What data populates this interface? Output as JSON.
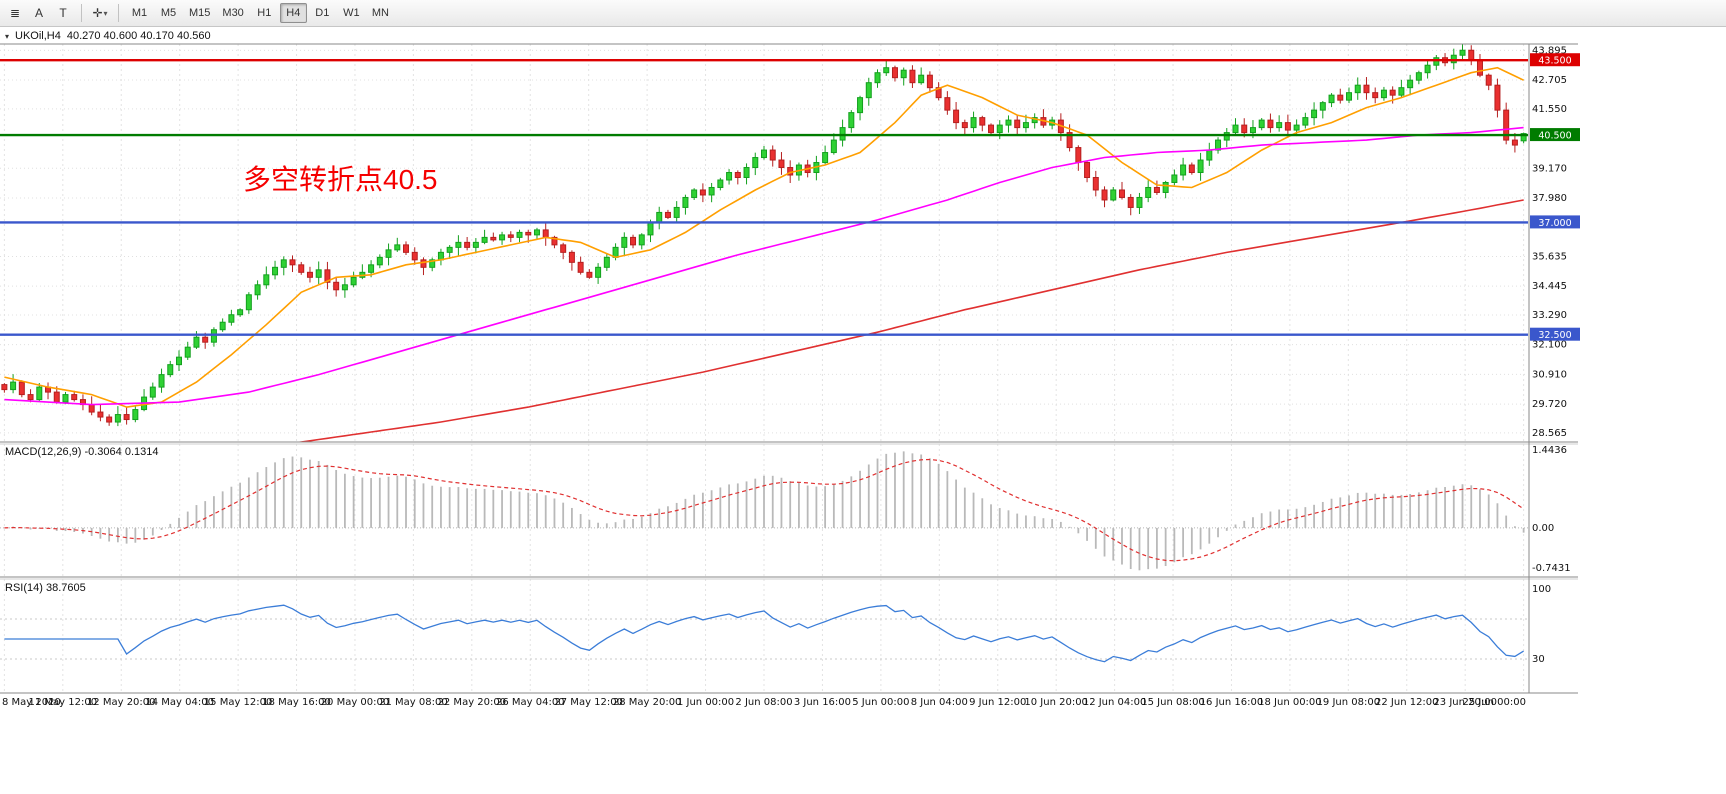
{
  "toolbar": {
    "icons": [
      {
        "name": "chart-window-icon",
        "glyph": "≣"
      },
      {
        "name": "font-tool-icon",
        "glyph": "A"
      },
      {
        "name": "text-tool-icon",
        "glyph": "T"
      },
      {
        "name": "cursor-mode-icon",
        "glyph": "✛",
        "dropdown": "▾"
      }
    ],
    "timeframes": [
      "M1",
      "M5",
      "M15",
      "M30",
      "H1",
      "H4",
      "D1",
      "W1",
      "MN"
    ],
    "active_timeframe": "H4"
  },
  "quote_line": {
    "expand_icon": "▾",
    "symbol_period": "UKOil,H4",
    "ohlc": "40.270 40.600 40.170 40.560"
  },
  "chart_data": {
    "type": "candlestick",
    "symbol": "UKOil",
    "timeframe": "H4",
    "quote": {
      "open": "40.270",
      "high": "40.600",
      "low": "40.170",
      "close": "40.560"
    },
    "y_axis": {
      "min": 28.2,
      "max": 44.15,
      "tick_labels": [
        "43.895",
        "42.705",
        "41.550",
        "39.170",
        "37.980",
        "35.635",
        "34.445",
        "33.290",
        "32.100",
        "30.910",
        "29.720",
        "28.565"
      ]
    },
    "x_axis": {
      "tick_labels": [
        "8 May 2020",
        "11 May 12:00",
        "12 May 20:00",
        "14 May 04:00",
        "15 May 12:00",
        "18 May 16:00",
        "20 May 00:00",
        "21 May 08:00",
        "22 May 20:00",
        "26 May 04:00",
        "27 May 12:00",
        "28 May 20:00",
        "1 Jun 00:00",
        "2 Jun 08:00",
        "3 Jun 16:00",
        "5 Jun 00:00",
        "8 Jun 04:00",
        "9 Jun 12:00",
        "10 Jun 20:00",
        "12 Jun 04:00",
        "15 Jun 08:00",
        "16 Jun 16:00",
        "18 Jun 00:00",
        "19 Jun 08:00",
        "22 Jun 12:00",
        "23 Jun 20:00",
        "25 Jun 00:00"
      ]
    },
    "horizontal_lines": [
      {
        "value": 43.5,
        "label": "43.500",
        "color": "#dd0000"
      },
      {
        "value": 40.5,
        "label": "40.500",
        "color": "#007c00"
      },
      {
        "value": 37.0,
        "label": "37.000",
        "color": "#3a57cc"
      },
      {
        "value": 32.5,
        "label": "32.500",
        "color": "#3a57cc"
      }
    ],
    "annotation": {
      "text": "多空转折点40.5",
      "color": "#f50000"
    },
    "closes": [
      30.3,
      30.6,
      30.1,
      29.9,
      30.4,
      30.2,
      29.8,
      30.1,
      29.9,
      29.7,
      29.4,
      29.2,
      29.0,
      29.3,
      29.1,
      29.5,
      30.0,
      30.4,
      30.9,
      31.3,
      31.6,
      32.0,
      32.4,
      32.2,
      32.7,
      33.0,
      33.3,
      33.5,
      34.1,
      34.5,
      34.9,
      35.2,
      35.5,
      35.3,
      35.0,
      34.8,
      35.1,
      34.6,
      34.3,
      34.5,
      34.8,
      35.0,
      35.3,
      35.6,
      35.9,
      36.1,
      35.8,
      35.5,
      35.2,
      35.5,
      35.8,
      36.0,
      36.2,
      36.0,
      36.2,
      36.4,
      36.3,
      36.5,
      36.4,
      36.6,
      36.5,
      36.7,
      36.4,
      36.1,
      35.8,
      35.4,
      35.0,
      34.8,
      35.2,
      35.6,
      36.0,
      36.4,
      36.1,
      36.5,
      37.0,
      37.4,
      37.2,
      37.6,
      38.0,
      38.3,
      38.1,
      38.4,
      38.7,
      39.0,
      38.8,
      39.2,
      39.6,
      39.9,
      39.5,
      39.2,
      38.9,
      39.3,
      39.0,
      39.4,
      39.8,
      40.3,
      40.8,
      41.4,
      42.0,
      42.6,
      43.0,
      43.2,
      42.8,
      43.1,
      42.6,
      42.9,
      42.4,
      42.0,
      41.5,
      41.0,
      40.8,
      41.2,
      40.9,
      40.6,
      40.9,
      41.1,
      40.8,
      41.0,
      41.2,
      40.9,
      41.1,
      40.6,
      40.0,
      39.4,
      38.8,
      38.3,
      37.9,
      38.3,
      38.0,
      37.6,
      38.0,
      38.4,
      38.2,
      38.6,
      38.9,
      39.3,
      39.0,
      39.5,
      39.9,
      40.3,
      40.6,
      40.9,
      40.6,
      40.8,
      41.1,
      40.8,
      41.0,
      40.7,
      40.9,
      41.2,
      41.5,
      41.8,
      42.1,
      41.9,
      42.2,
      42.5,
      42.2,
      42.0,
      42.3,
      42.1,
      42.4,
      42.7,
      43.0,
      43.3,
      43.6,
      43.4,
      43.7,
      43.9,
      43.5,
      42.9,
      42.5,
      41.5,
      40.3,
      40.1,
      40.56
    ],
    "moving_averages": [
      {
        "name": "ma-fast",
        "color": "#ff9f00",
        "points": [
          [
            0,
            30.8
          ],
          [
            5,
            30.4
          ],
          [
            10,
            30.1
          ],
          [
            14,
            29.6
          ],
          [
            18,
            29.8
          ],
          [
            22,
            30.6
          ],
          [
            26,
            31.7
          ],
          [
            30,
            32.9
          ],
          [
            34,
            34.2
          ],
          [
            38,
            34.8
          ],
          [
            42,
            34.9
          ],
          [
            46,
            35.3
          ],
          [
            50,
            35.5
          ],
          [
            54,
            35.8
          ],
          [
            58,
            36.1
          ],
          [
            62,
            36.4
          ],
          [
            66,
            36.2
          ],
          [
            70,
            35.6
          ],
          [
            74,
            35.9
          ],
          [
            78,
            36.6
          ],
          [
            82,
            37.5
          ],
          [
            86,
            38.3
          ],
          [
            90,
            39.0
          ],
          [
            94,
            39.3
          ],
          [
            98,
            39.8
          ],
          [
            102,
            41.0
          ],
          [
            105,
            42.1
          ],
          [
            108,
            42.5
          ],
          [
            112,
            42.0
          ],
          [
            116,
            41.3
          ],
          [
            120,
            41.0
          ],
          [
            124,
            40.5
          ],
          [
            128,
            39.4
          ],
          [
            132,
            38.5
          ],
          [
            136,
            38.4
          ],
          [
            140,
            39.0
          ],
          [
            144,
            39.9
          ],
          [
            148,
            40.6
          ],
          [
            152,
            41.0
          ],
          [
            156,
            41.6
          ],
          [
            160,
            42.0
          ],
          [
            164,
            42.5
          ],
          [
            168,
            43.0
          ],
          [
            171,
            43.2
          ],
          [
            174,
            42.7
          ]
        ]
      },
      {
        "name": "ma-mid",
        "color": "#ff00ff",
        "points": [
          [
            0,
            29.9
          ],
          [
            10,
            29.7
          ],
          [
            20,
            29.8
          ],
          [
            28,
            30.2
          ],
          [
            36,
            30.9
          ],
          [
            44,
            31.7
          ],
          [
            52,
            32.5
          ],
          [
            60,
            33.3
          ],
          [
            68,
            34.1
          ],
          [
            76,
            34.9
          ],
          [
            84,
            35.7
          ],
          [
            92,
            36.4
          ],
          [
            100,
            37.1
          ],
          [
            108,
            37.9
          ],
          [
            114,
            38.6
          ],
          [
            120,
            39.2
          ],
          [
            126,
            39.6
          ],
          [
            132,
            39.8
          ],
          [
            138,
            39.9
          ],
          [
            144,
            40.1
          ],
          [
            150,
            40.2
          ],
          [
            156,
            40.3
          ],
          [
            162,
            40.5
          ],
          [
            168,
            40.6
          ],
          [
            174,
            40.8
          ]
        ]
      },
      {
        "name": "ma-slow",
        "color": "#e03030",
        "points": [
          [
            20,
            27.6
          ],
          [
            30,
            28.0
          ],
          [
            40,
            28.5
          ],
          [
            50,
            29.0
          ],
          [
            60,
            29.6
          ],
          [
            70,
            30.3
          ],
          [
            80,
            31.0
          ],
          [
            90,
            31.8
          ],
          [
            100,
            32.6
          ],
          [
            110,
            33.5
          ],
          [
            120,
            34.3
          ],
          [
            130,
            35.1
          ],
          [
            140,
            35.8
          ],
          [
            150,
            36.4
          ],
          [
            160,
            37.0
          ],
          [
            168,
            37.5
          ],
          [
            174,
            37.9
          ]
        ]
      }
    ],
    "indicators": [
      {
        "name": "MACD",
        "label": "MACD(12,26,9) -0.3064 0.1314",
        "values": [
          "-0.3064",
          "0.1314"
        ],
        "scale_labels": [
          "1.4436",
          "0.00",
          "-0.7431"
        ],
        "histogram_color": "#b9b9b9",
        "signal_color": "#e03030"
      },
      {
        "name": "RSI",
        "label": "RSI(14) 38.7605",
        "value": "38.7605",
        "scale_labels": [
          "100",
          "30"
        ],
        "levels": [
          70,
          30
        ],
        "line_color": "#3b7dd8"
      }
    ],
    "candle_colors": {
      "bull_fill": "#2fd134",
      "bull_stroke": "#13a01e",
      "bear_fill": "#e93030",
      "bear_stroke": "#b51f1f"
    }
  }
}
